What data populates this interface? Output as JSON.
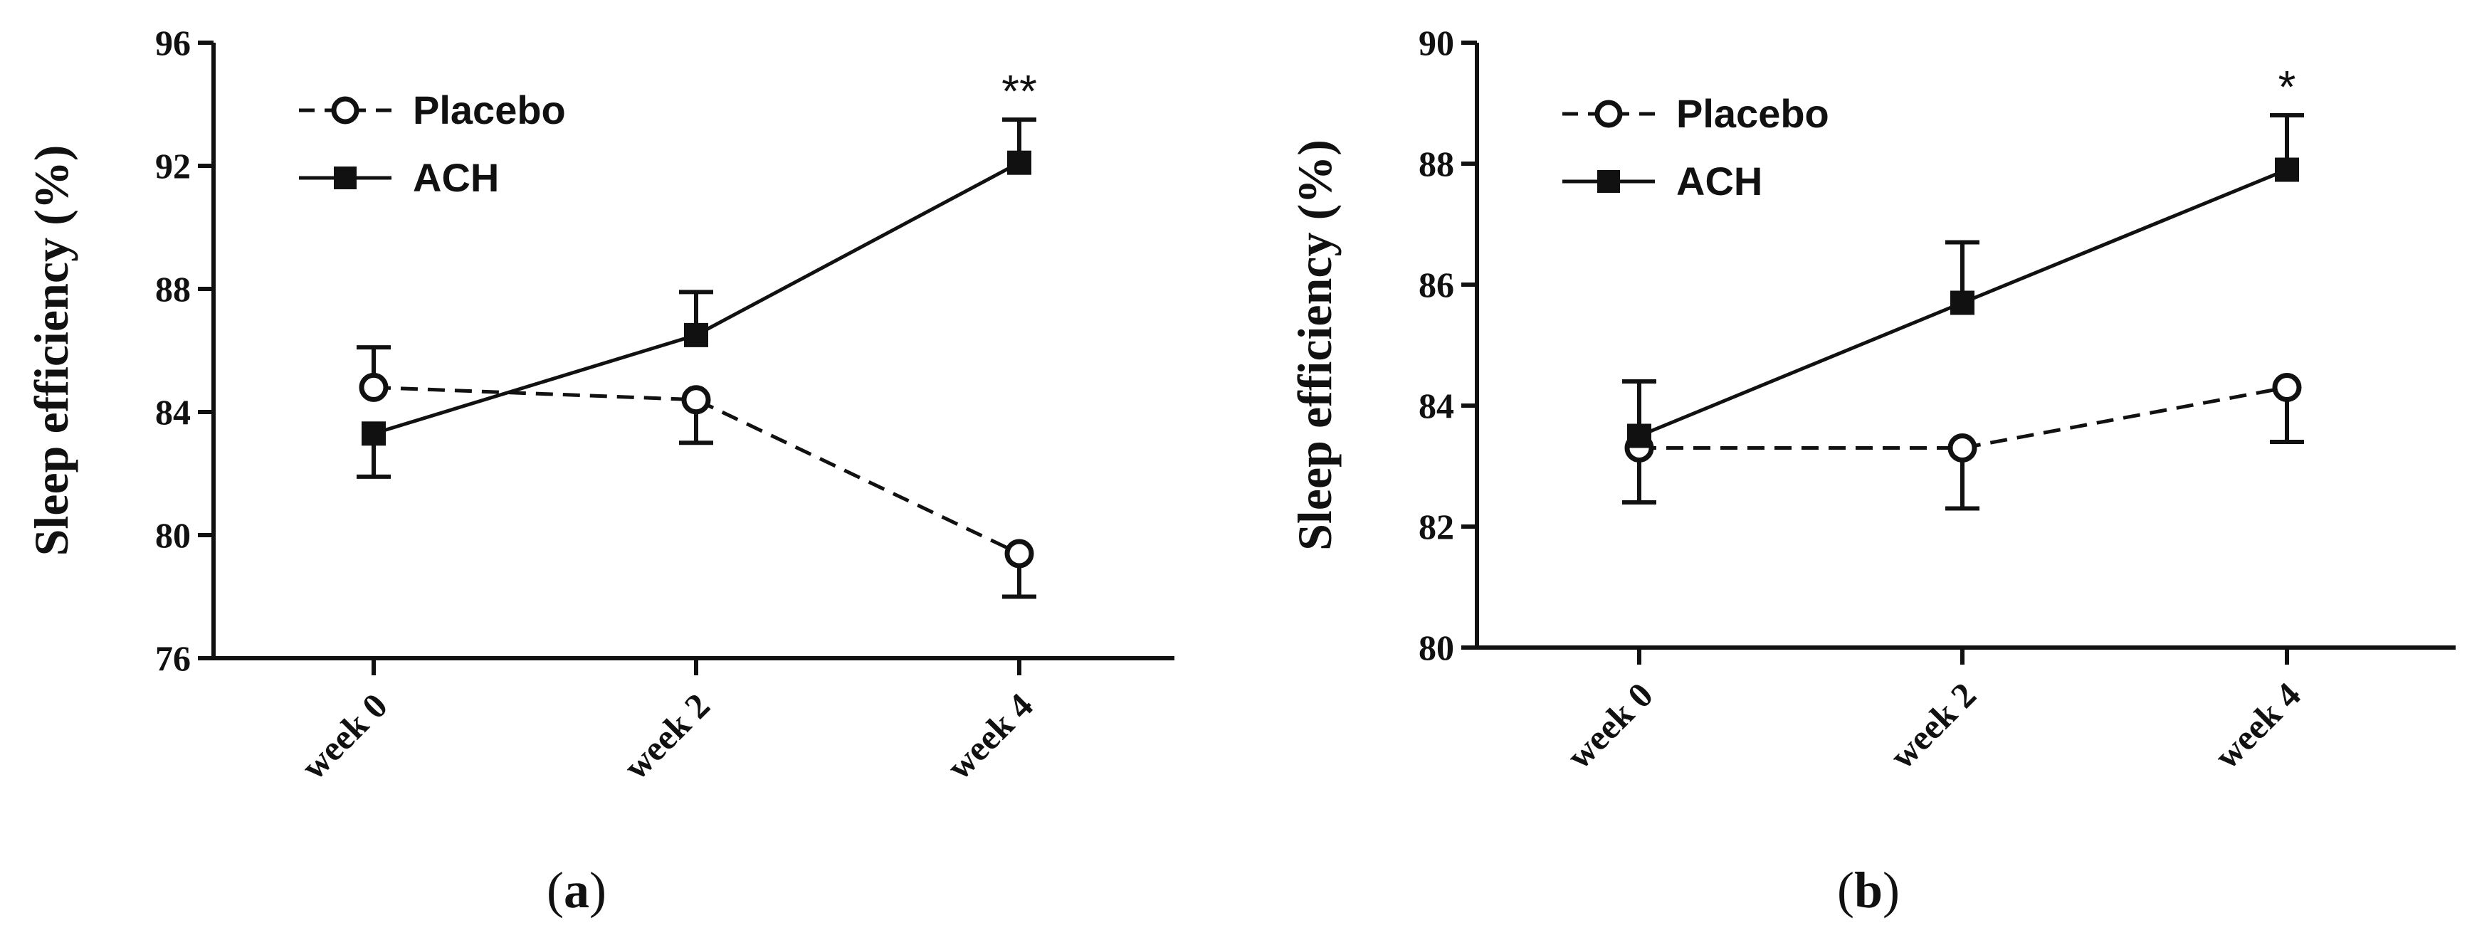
{
  "figure": {
    "colors": {
      "ink": "#111111",
      "background": "#ffffff"
    }
  },
  "chart_data": [
    {
      "type": "line",
      "panel_label": "a",
      "title": "",
      "ylabel": "Sleep efficiency (%)",
      "xlabel": "",
      "ylim": [
        76,
        96
      ],
      "yticks": [
        "76",
        "80",
        "84",
        "88",
        "92",
        "96"
      ],
      "categories": [
        "week 0",
        "week 2",
        "week 4"
      ],
      "legend": {
        "position": "top-left"
      },
      "series": [
        {
          "name": "Placebo",
          "marker": "open-circle",
          "line": "dashed",
          "values": [
            84.8,
            84.4,
            79.4
          ],
          "errors": [
            1.3,
            1.4,
            1.4
          ],
          "error_dir": [
            1,
            -1,
            -1
          ]
        },
        {
          "name": "ACH",
          "marker": "filled-square",
          "line": "solid",
          "values": [
            83.3,
            86.5,
            92.1
          ],
          "errors": [
            1.4,
            1.4,
            1.4
          ],
          "error_dir": [
            -1,
            1,
            1
          ]
        }
      ],
      "annotations": [
        {
          "category": "week 4",
          "text": "**"
        }
      ]
    },
    {
      "type": "line",
      "panel_label": "b",
      "title": "",
      "ylabel": "Sleep efficiency (%)",
      "xlabel": "",
      "ylim": [
        80,
        90
      ],
      "yticks": [
        "80",
        "82",
        "84",
        "86",
        "88",
        "90"
      ],
      "categories": [
        "week 0",
        "week 2",
        "week 4"
      ],
      "legend": {
        "position": "top-left"
      },
      "series": [
        {
          "name": "Placebo",
          "marker": "open-circle",
          "line": "dashed",
          "values": [
            83.3,
            83.3,
            84.3
          ],
          "errors": [
            0.9,
            1.0,
            0.9
          ],
          "error_dir": [
            -1,
            -1,
            -1
          ]
        },
        {
          "name": "ACH",
          "marker": "filled-square",
          "line": "solid",
          "values": [
            83.5,
            85.7,
            87.9
          ],
          "errors": [
            0.9,
            1.0,
            0.9
          ],
          "error_dir": [
            1,
            1,
            1
          ]
        }
      ],
      "annotations": [
        {
          "category": "week 4",
          "text": "*"
        }
      ]
    }
  ]
}
